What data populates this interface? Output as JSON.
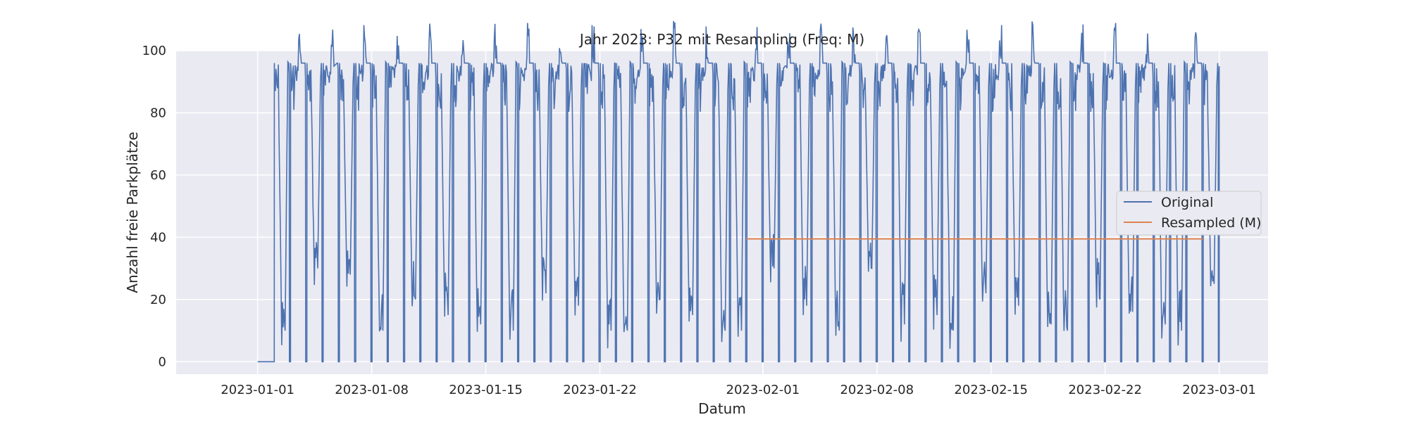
{
  "chart_data": {
    "type": "line",
    "title": "Jahr 2023: P32 mit Resampling (Freq: M)",
    "xlabel": "Datum",
    "ylabel": "Anzahl freie Parkplätze",
    "xlim": [
      "2022-12-27",
      "2023-03-04"
    ],
    "ylim": [
      -4,
      100
    ],
    "x_ticks": [
      "2023-01-01",
      "2023-01-08",
      "2023-01-15",
      "2023-01-22",
      "2023-02-01",
      "2023-02-08",
      "2023-02-15",
      "2023-02-22",
      "2023-03-01"
    ],
    "y_ticks": [
      0,
      20,
      40,
      60,
      80,
      100
    ],
    "grid": true,
    "legend_position": "center-right",
    "series": [
      {
        "name": "Original",
        "color": "#4c72b0",
        "x_start": "2023-01-01",
        "x_end": "2023-03-01",
        "points": [
          [
            "2023-01-01",
            0
          ],
          [
            "2023-01-02",
            0
          ],
          [
            "2023-01-03",
            96
          ],
          [
            "2023-01-04",
            30
          ],
          [
            "2023-01-05",
            95
          ],
          [
            "2023-01-06",
            28
          ],
          [
            "2023-01-07",
            96
          ],
          [
            "2023-01-08",
            0
          ],
          [
            "2023-01-09",
            96
          ],
          [
            "2023-01-10",
            20
          ],
          [
            "2023-01-11",
            96
          ],
          [
            "2023-01-12",
            15
          ],
          [
            "2023-01-13",
            96
          ],
          [
            "2023-01-14",
            12
          ],
          [
            "2023-01-15",
            96
          ],
          [
            "2023-01-16",
            0
          ],
          [
            "2023-01-17",
            96
          ],
          [
            "2023-01-18",
            22
          ],
          [
            "2023-01-19",
            96
          ],
          [
            "2023-01-20",
            18
          ],
          [
            "2023-01-21",
            96
          ],
          [
            "2023-01-22",
            10
          ],
          [
            "2023-01-23",
            0
          ],
          [
            "2023-01-24",
            96
          ],
          [
            "2023-01-25",
            20
          ],
          [
            "2023-01-26",
            96
          ],
          [
            "2023-01-27",
            15
          ],
          [
            "2023-01-28",
            96
          ],
          [
            "2023-01-29",
            10
          ],
          [
            "2023-01-30",
            0
          ],
          [
            "2023-01-31",
            96
          ],
          [
            "2023-02-01",
            30
          ],
          [
            "2023-02-02",
            96
          ],
          [
            "2023-02-03",
            18
          ],
          [
            "2023-02-04",
            96
          ],
          [
            "2023-02-05",
            0
          ],
          [
            "2023-02-06",
            96
          ],
          [
            "2023-02-07",
            30
          ],
          [
            "2023-02-08",
            96
          ],
          [
            "2023-02-09",
            12
          ],
          [
            "2023-02-10",
            96
          ],
          [
            "2023-02-11",
            15
          ],
          [
            "2023-02-12",
            0
          ],
          [
            "2023-02-13",
            96
          ],
          [
            "2023-02-14",
            22
          ],
          [
            "2023-02-15",
            96
          ],
          [
            "2023-02-16",
            18
          ],
          [
            "2023-02-17",
            96
          ],
          [
            "2023-02-18",
            12
          ],
          [
            "2023-02-19",
            0
          ],
          [
            "2023-02-20",
            96
          ],
          [
            "2023-02-21",
            20
          ],
          [
            "2023-02-22",
            96
          ],
          [
            "2023-02-23",
            16
          ],
          [
            "2023-02-24",
            96
          ],
          [
            "2023-02-25",
            12
          ],
          [
            "2023-02-26",
            0
          ],
          [
            "2023-02-27",
            96
          ],
          [
            "2023-02-28",
            25
          ],
          [
            "2023-03-01",
            95
          ]
        ]
      },
      {
        "name": "Resampled (M)",
        "color": "#dd8452",
        "points": [
          [
            "2023-01-31",
            39.5
          ],
          [
            "2023-02-28",
            39.5
          ]
        ]
      }
    ]
  }
}
